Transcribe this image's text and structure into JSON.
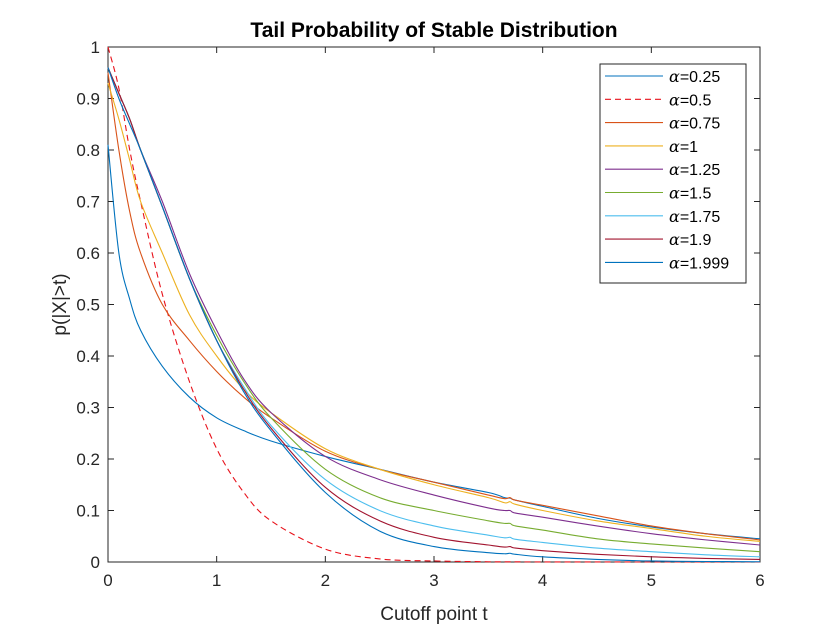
{
  "chart_data": {
    "type": "line",
    "title": "Tail Probability of Stable Distribution",
    "xlabel": "Cutoff point t",
    "ylabel": "p(|X|>t)",
    "xlim": [
      0,
      6
    ],
    "ylim": [
      0,
      1
    ],
    "xticks": [
      "0",
      "1",
      "2",
      "3",
      "4",
      "5",
      "6"
    ],
    "yticks": [
      "0",
      "0.1",
      "0.2",
      "0.3",
      "0.4",
      "0.5",
      "0.6",
      "0.7",
      "0.8",
      "0.9",
      "1"
    ],
    "grid": false,
    "legend_position": "top-right",
    "legend_prefix": "α",
    "x": [
      0,
      0.1,
      0.2,
      0.3,
      0.5,
      0.75,
      1,
      1.25,
      1.5,
      2,
      2.5,
      3,
      3.5,
      3.65,
      3.7,
      3.75,
      4,
      4.5,
      5,
      5.5,
      6
    ],
    "series": [
      {
        "name": "=0.25",
        "color": "#0072BD",
        "dash": false,
        "values": [
          0.81,
          0.6,
          0.51,
          0.45,
          0.38,
          0.32,
          0.28,
          0.255,
          0.235,
          0.205,
          0.18,
          0.155,
          0.135,
          0.125,
          0.124,
          0.12,
          0.108,
          0.085,
          0.068,
          0.055,
          0.045
        ]
      },
      {
        "name": "=0.5",
        "color": "#E8121B",
        "dash": true,
        "values": [
          1.0,
          0.92,
          0.8,
          0.7,
          0.52,
          0.35,
          0.22,
          0.135,
          0.08,
          0.025,
          0.006,
          0.002,
          0.0005,
          0.0003,
          0.0003,
          0.0003,
          0.0002,
          0.0001,
          0,
          0,
          0
        ]
      },
      {
        "name": "=0.75",
        "color": "#D95319",
        "dash": false,
        "values": [
          0.95,
          0.8,
          0.68,
          0.6,
          0.5,
          0.43,
          0.37,
          0.32,
          0.28,
          0.215,
          0.18,
          0.155,
          0.13,
          0.123,
          0.125,
          0.12,
          0.11,
          0.09,
          0.07,
          0.055,
          0.043
        ]
      },
      {
        "name": "=1",
        "color": "#EDB120",
        "dash": false,
        "values": [
          0.93,
          0.86,
          0.78,
          0.7,
          0.6,
          0.48,
          0.4,
          0.335,
          0.29,
          0.22,
          0.18,
          0.15,
          0.125,
          0.115,
          0.117,
          0.112,
          0.1,
          0.08,
          0.065,
          0.05,
          0.04
        ]
      },
      {
        "name": "=1.25",
        "color": "#7E2F8E",
        "dash": false,
        "values": [
          0.96,
          0.91,
          0.86,
          0.8,
          0.7,
          0.56,
          0.45,
          0.355,
          0.29,
          0.205,
          0.16,
          0.13,
          0.105,
          0.1,
          0.1,
          0.095,
          0.087,
          0.07,
          0.055,
          0.043,
          0.033
        ]
      },
      {
        "name": "=1.5",
        "color": "#77AC30",
        "dash": false,
        "values": [
          0.96,
          0.91,
          0.86,
          0.8,
          0.69,
          0.55,
          0.44,
          0.35,
          0.28,
          0.18,
          0.125,
          0.1,
          0.08,
          0.075,
          0.075,
          0.07,
          0.062,
          0.045,
          0.035,
          0.027,
          0.02
        ]
      },
      {
        "name": "=1.75",
        "color": "#4DBEEE",
        "dash": false,
        "values": [
          0.96,
          0.91,
          0.86,
          0.8,
          0.69,
          0.55,
          0.43,
          0.34,
          0.265,
          0.16,
          0.1,
          0.07,
          0.052,
          0.047,
          0.048,
          0.044,
          0.038,
          0.027,
          0.02,
          0.014,
          0.01
        ]
      },
      {
        "name": "=1.9",
        "color": "#A2142F",
        "dash": false,
        "values": [
          0.96,
          0.91,
          0.86,
          0.8,
          0.69,
          0.55,
          0.43,
          0.335,
          0.26,
          0.145,
          0.08,
          0.048,
          0.033,
          0.029,
          0.03,
          0.027,
          0.022,
          0.015,
          0.01,
          0.007,
          0.005
        ]
      },
      {
        "name": "=1.999",
        "color": "#0072BD",
        "dash": false,
        "values": [
          0.96,
          0.9,
          0.85,
          0.8,
          0.69,
          0.55,
          0.43,
          0.33,
          0.255,
          0.135,
          0.06,
          0.03,
          0.018,
          0.016,
          0.017,
          0.015,
          0.01,
          0.005,
          0.002,
          0.001,
          0.0005
        ]
      }
    ]
  }
}
